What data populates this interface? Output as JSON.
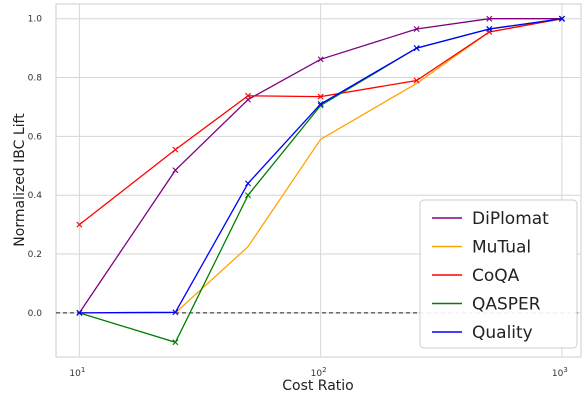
{
  "chart_data": {
    "type": "line",
    "title": "",
    "xlabel": "Cost Ratio",
    "ylabel": "Normalized IBC Lift",
    "xscale": "log",
    "xlim": [
      8,
      1200
    ],
    "ylim": [
      -0.15,
      1.05
    ],
    "x_ticks": [
      {
        "value": 10,
        "base": "10",
        "exp": "1"
      },
      {
        "value": 100,
        "base": "10",
        "exp": "2"
      },
      {
        "value": 1000,
        "base": "10",
        "exp": "3"
      }
    ],
    "y_ticks": [
      {
        "value": 0.0,
        "label": "0.0"
      },
      {
        "value": 0.2,
        "label": "0.2"
      },
      {
        "value": 0.4,
        "label": "0.4"
      },
      {
        "value": 0.6,
        "label": "0.6"
      },
      {
        "value": 0.8,
        "label": "0.8"
      },
      {
        "value": 1.0,
        "label": "1.0"
      }
    ],
    "grid": true,
    "reference_line": {
      "y": 0.0,
      "style": "dashed",
      "color": "#222222"
    },
    "legend_position": "lower-right",
    "x": [
      10,
      25,
      50,
      100,
      250,
      500,
      1000
    ],
    "series": [
      {
        "name": "DiPlomat",
        "color": "#800080",
        "marker": "x",
        "values": [
          0.0,
          0.485,
          0.725,
          0.862,
          0.965,
          1.0,
          1.0
        ]
      },
      {
        "name": "MuTual",
        "color": "#FFA500",
        "marker": "none",
        "values": [
          0.0,
          0.0,
          0.225,
          0.59,
          0.78,
          0.955,
          1.0
        ]
      },
      {
        "name": "CoQA",
        "color": "#FF0000",
        "marker": "x",
        "values": [
          0.3,
          0.555,
          0.738,
          0.735,
          0.79,
          0.955,
          1.0
        ]
      },
      {
        "name": "QASPER",
        "color": "#008000",
        "marker": "x",
        "values": [
          0.0,
          -0.1,
          0.4,
          0.705,
          0.9,
          0.965,
          1.0
        ]
      },
      {
        "name": "Quality",
        "color": "#0000FF",
        "marker": "x",
        "values": [
          0.0,
          0.002,
          0.44,
          0.71,
          0.9,
          0.965,
          1.0
        ]
      }
    ]
  }
}
